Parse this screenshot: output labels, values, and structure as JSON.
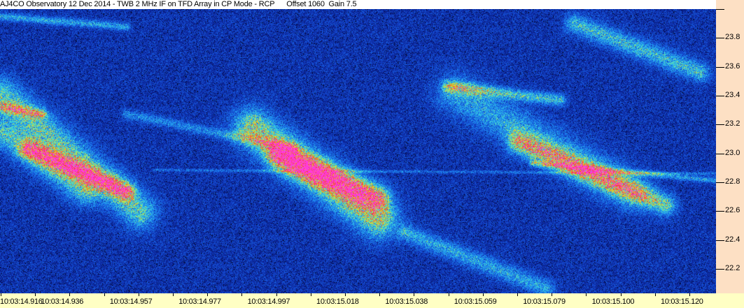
{
  "title": "AJ4CO Observatory 12 Dec 2014 - TWB 2 MHz IF on TFD Array in CP Mode - RCP",
  "offset_label": "Offset 1060",
  "gain_label": "Gain 7.5",
  "chart_data": {
    "type": "heatmap",
    "title": "AJ4CO Observatory 12 Dec 2014 - TWB 2 MHz IF on TFD Array in CP Mode - RCP",
    "ylabel": "",
    "xlabel": "",
    "y_axis_side": "right",
    "y_ticks": [
      "23.8",
      "23.6",
      "23.4",
      "23.2",
      "23.0",
      "22.8",
      "22.6",
      "22.4",
      "22.2"
    ],
    "ylim": [
      22.03,
      24.0
    ],
    "x_ticks": [
      "10:03:14.916",
      "10:03:14.936",
      "10:03:14.957",
      "10:03:14.977",
      "10:03:14.997",
      "10:03:15.018",
      "10:03:15.038",
      "10:03:15.059",
      "10:03:15.079",
      "10:03:15.100",
      "10:03:15.120"
    ],
    "colormap": [
      "#000010",
      "#0a1e8c",
      "#1448d2",
      "#1e8cf0",
      "#3cdcdc",
      "#e6e61e",
      "#f03c28",
      "#ff3cdc"
    ],
    "background_color": "#0a1e8c",
    "grid": false
  }
}
